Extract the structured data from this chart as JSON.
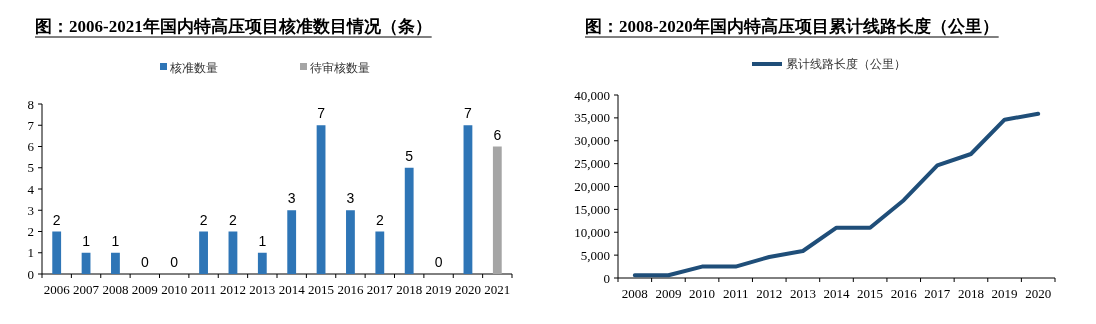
{
  "chart_data": [
    {
      "type": "bar",
      "title": "图：2006-2021年国内特高压项目核准数目情况（条）",
      "categories": [
        "2006",
        "2007",
        "2008",
        "2009",
        "2010",
        "2011",
        "2012",
        "2013",
        "2014",
        "2015",
        "2016",
        "2017",
        "2018",
        "2019",
        "2020",
        "2021"
      ],
      "series": [
        {
          "name": "核准数量",
          "color": "#2e75b6",
          "values": [
            2,
            1,
            1,
            0,
            0,
            2,
            2,
            1,
            3,
            7,
            3,
            2,
            5,
            0,
            7,
            null
          ]
        },
        {
          "name": "待审核数量",
          "color": "#a5a5a5",
          "values": [
            null,
            null,
            null,
            null,
            null,
            null,
            null,
            null,
            null,
            null,
            null,
            null,
            null,
            null,
            null,
            6
          ]
        }
      ],
      "stacked": true,
      "ylim": [
        0,
        8
      ],
      "yticks": [
        0,
        1,
        2,
        3,
        4,
        5,
        6,
        7,
        8
      ],
      "data_labels": true,
      "legend": "top",
      "grid": false
    },
    {
      "type": "line",
      "title": "图：2008-2020年国内特高压项目累计线路长度（公里）",
      "categories": [
        "2008",
        "2009",
        "2010",
        "2011",
        "2012",
        "2013",
        "2014",
        "2015",
        "2016",
        "2017",
        "2018",
        "2019",
        "2020"
      ],
      "series": [
        {
          "name": "累计线路长度（公里）",
          "color": "#1f4e79",
          "values": [
            600,
            600,
            2500,
            2500,
            4600,
            5900,
            11000,
            11000,
            17000,
            24600,
            27100,
            34600,
            35900
          ]
        }
      ],
      "ylim": [
        0,
        40000
      ],
      "yticks": [
        {
          "value": 0,
          "label": "0"
        },
        {
          "value": 5000,
          "label": "5,000"
        },
        {
          "value": 10000,
          "label": "10,000"
        },
        {
          "value": 15000,
          "label": "15,000"
        },
        {
          "value": 20000,
          "label": "20,000"
        },
        {
          "value": 25000,
          "label": "25,000"
        },
        {
          "value": 30000,
          "label": "30,000"
        },
        {
          "value": 35000,
          "label": "35,000"
        },
        {
          "value": 40000,
          "label": "40,000"
        }
      ],
      "legend": "top",
      "grid": false,
      "marker": "none",
      "line_style": "solid"
    }
  ]
}
